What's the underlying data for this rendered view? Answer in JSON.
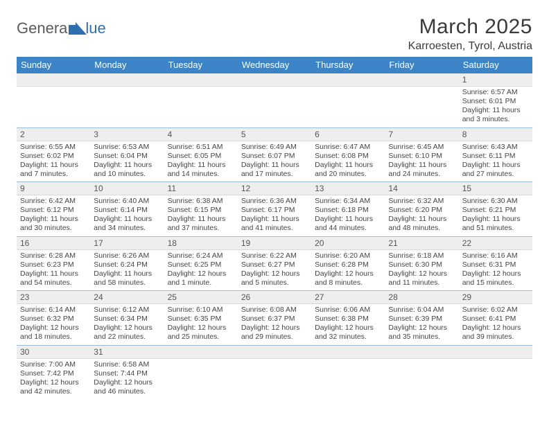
{
  "brand": {
    "text1": "Genera",
    "text2": "lue",
    "logo_fill": "#2f6fb0"
  },
  "header": {
    "month_title": "March 2025",
    "location": "Karroesten, Tyrol, Austria"
  },
  "colors": {
    "header_bg": "#3d84c6",
    "header_text": "#ffffff",
    "daynum_bg": "#eeeeee",
    "row_divider": "#9bbbd8",
    "body_text": "#444444"
  },
  "weekdays": [
    "Sunday",
    "Monday",
    "Tuesday",
    "Wednesday",
    "Thursday",
    "Friday",
    "Saturday"
  ],
  "weeks": [
    [
      null,
      null,
      null,
      null,
      null,
      null,
      {
        "n": "1",
        "sunrise": "6:57 AM",
        "sunset": "6:01 PM",
        "daylight": "11 hours and 3 minutes."
      }
    ],
    [
      {
        "n": "2",
        "sunrise": "6:55 AM",
        "sunset": "6:02 PM",
        "daylight": "11 hours and 7 minutes."
      },
      {
        "n": "3",
        "sunrise": "6:53 AM",
        "sunset": "6:04 PM",
        "daylight": "11 hours and 10 minutes."
      },
      {
        "n": "4",
        "sunrise": "6:51 AM",
        "sunset": "6:05 PM",
        "daylight": "11 hours and 14 minutes."
      },
      {
        "n": "5",
        "sunrise": "6:49 AM",
        "sunset": "6:07 PM",
        "daylight": "11 hours and 17 minutes."
      },
      {
        "n": "6",
        "sunrise": "6:47 AM",
        "sunset": "6:08 PM",
        "daylight": "11 hours and 20 minutes."
      },
      {
        "n": "7",
        "sunrise": "6:45 AM",
        "sunset": "6:10 PM",
        "daylight": "11 hours and 24 minutes."
      },
      {
        "n": "8",
        "sunrise": "6:43 AM",
        "sunset": "6:11 PM",
        "daylight": "11 hours and 27 minutes."
      }
    ],
    [
      {
        "n": "9",
        "sunrise": "6:42 AM",
        "sunset": "6:12 PM",
        "daylight": "11 hours and 30 minutes."
      },
      {
        "n": "10",
        "sunrise": "6:40 AM",
        "sunset": "6:14 PM",
        "daylight": "11 hours and 34 minutes."
      },
      {
        "n": "11",
        "sunrise": "6:38 AM",
        "sunset": "6:15 PM",
        "daylight": "11 hours and 37 minutes."
      },
      {
        "n": "12",
        "sunrise": "6:36 AM",
        "sunset": "6:17 PM",
        "daylight": "11 hours and 41 minutes."
      },
      {
        "n": "13",
        "sunrise": "6:34 AM",
        "sunset": "6:18 PM",
        "daylight": "11 hours and 44 minutes."
      },
      {
        "n": "14",
        "sunrise": "6:32 AM",
        "sunset": "6:20 PM",
        "daylight": "11 hours and 48 minutes."
      },
      {
        "n": "15",
        "sunrise": "6:30 AM",
        "sunset": "6:21 PM",
        "daylight": "11 hours and 51 minutes."
      }
    ],
    [
      {
        "n": "16",
        "sunrise": "6:28 AM",
        "sunset": "6:23 PM",
        "daylight": "11 hours and 54 minutes."
      },
      {
        "n": "17",
        "sunrise": "6:26 AM",
        "sunset": "6:24 PM",
        "daylight": "11 hours and 58 minutes."
      },
      {
        "n": "18",
        "sunrise": "6:24 AM",
        "sunset": "6:25 PM",
        "daylight": "12 hours and 1 minute."
      },
      {
        "n": "19",
        "sunrise": "6:22 AM",
        "sunset": "6:27 PM",
        "daylight": "12 hours and 5 minutes."
      },
      {
        "n": "20",
        "sunrise": "6:20 AM",
        "sunset": "6:28 PM",
        "daylight": "12 hours and 8 minutes."
      },
      {
        "n": "21",
        "sunrise": "6:18 AM",
        "sunset": "6:30 PM",
        "daylight": "12 hours and 11 minutes."
      },
      {
        "n": "22",
        "sunrise": "6:16 AM",
        "sunset": "6:31 PM",
        "daylight": "12 hours and 15 minutes."
      }
    ],
    [
      {
        "n": "23",
        "sunrise": "6:14 AM",
        "sunset": "6:32 PM",
        "daylight": "12 hours and 18 minutes."
      },
      {
        "n": "24",
        "sunrise": "6:12 AM",
        "sunset": "6:34 PM",
        "daylight": "12 hours and 22 minutes."
      },
      {
        "n": "25",
        "sunrise": "6:10 AM",
        "sunset": "6:35 PM",
        "daylight": "12 hours and 25 minutes."
      },
      {
        "n": "26",
        "sunrise": "6:08 AM",
        "sunset": "6:37 PM",
        "daylight": "12 hours and 29 minutes."
      },
      {
        "n": "27",
        "sunrise": "6:06 AM",
        "sunset": "6:38 PM",
        "daylight": "12 hours and 32 minutes."
      },
      {
        "n": "28",
        "sunrise": "6:04 AM",
        "sunset": "6:39 PM",
        "daylight": "12 hours and 35 minutes."
      },
      {
        "n": "29",
        "sunrise": "6:02 AM",
        "sunset": "6:41 PM",
        "daylight": "12 hours and 39 minutes."
      }
    ],
    [
      {
        "n": "30",
        "sunrise": "7:00 AM",
        "sunset": "7:42 PM",
        "daylight": "12 hours and 42 minutes."
      },
      {
        "n": "31",
        "sunrise": "6:58 AM",
        "sunset": "7:44 PM",
        "daylight": "12 hours and 46 minutes."
      },
      null,
      null,
      null,
      null,
      null
    ]
  ],
  "labels": {
    "sunrise": "Sunrise:",
    "sunset": "Sunset:",
    "daylight": "Daylight:"
  }
}
